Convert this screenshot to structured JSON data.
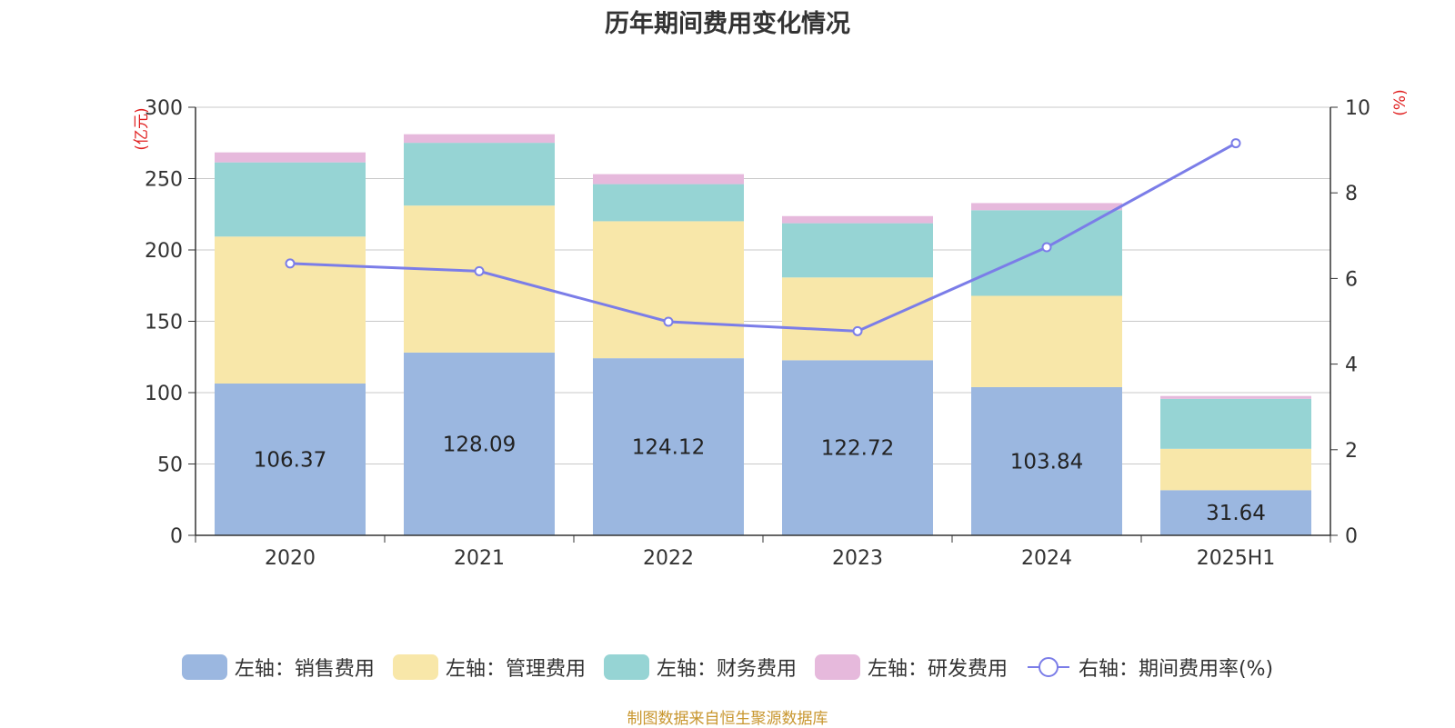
{
  "colors": {
    "sales": "#9bb7e0",
    "admin": "#f8e7a9",
    "finance": "#96d4d4",
    "rd": "#e6b9dc",
    "rate_line": "#7b7de8",
    "axis_unit": "#e02020",
    "source": "#c8962e"
  },
  "chart_data": {
    "type": "bar",
    "title": "历年期间费用变化情况",
    "categories": [
      "2020",
      "2021",
      "2022",
      "2023",
      "2024",
      "2025H1"
    ],
    "y_left": {
      "label": "(亿元)",
      "range": [
        0,
        300
      ],
      "ticks": [
        "0",
        "50",
        "100",
        "150",
        "200",
        "250",
        "300"
      ]
    },
    "y_right": {
      "label": "(%)",
      "range": [
        0,
        10
      ],
      "ticks": [
        "0",
        "2",
        "4",
        "6",
        "8",
        "10"
      ]
    },
    "grid": true,
    "legend_position": "bottom",
    "series": [
      {
        "name": "左轴：销售费用",
        "axis": "left",
        "color_key": "sales",
        "values": [
          106.37,
          128.09,
          124.12,
          122.72,
          103.84,
          31.64
        ],
        "labels": [
          "106.37",
          "128.09",
          "124.12",
          "122.72",
          "103.84",
          "31.64"
        ]
      },
      {
        "name": "左轴：管理费用",
        "axis": "left",
        "color_key": "admin",
        "values": [
          103,
          103,
          96,
          58,
          64,
          29
        ]
      },
      {
        "name": "左轴：财务费用",
        "axis": "left",
        "color_key": "finance",
        "values": [
          52,
          44,
          26,
          38,
          60,
          35
        ]
      },
      {
        "name": "左轴：研发费用",
        "axis": "left",
        "color_key": "rd",
        "values": [
          7,
          6,
          7,
          5,
          5,
          2
        ]
      },
      {
        "name": "右轴：期间费用率(%)",
        "axis": "right",
        "type": "line",
        "color_key": "rate_line",
        "values": [
          6.35,
          6.17,
          4.99,
          4.77,
          6.73,
          9.16
        ]
      }
    ]
  },
  "source": "制图数据来自恒生聚源数据库"
}
